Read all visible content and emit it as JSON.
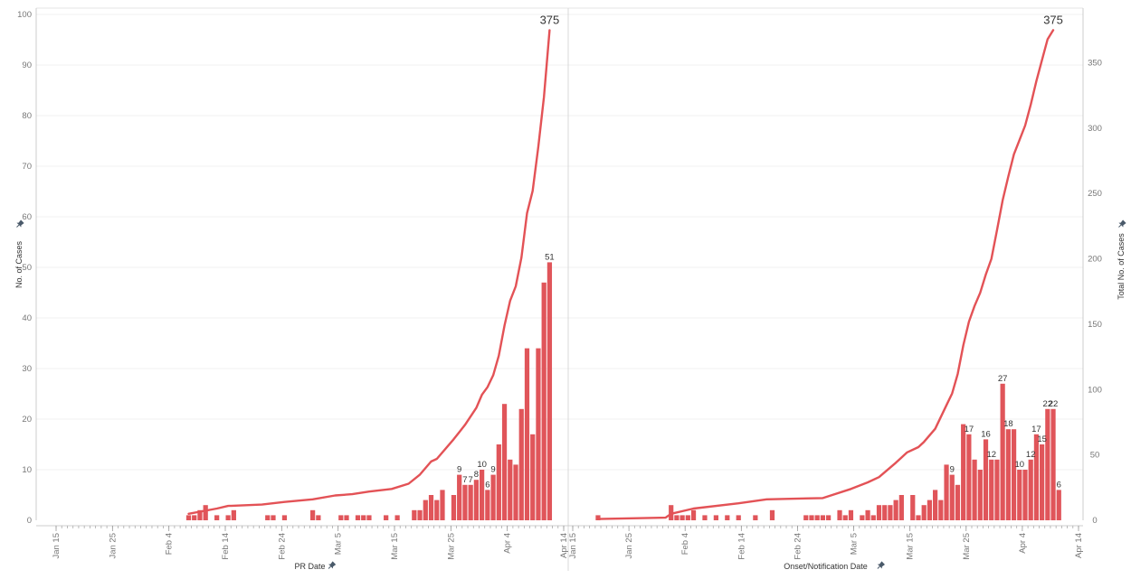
{
  "chart_data": {
    "type": "bar",
    "colors": {
      "bar": "#e0555a",
      "line": "#e35256",
      "grid": "#f0f0f0",
      "axis": "#cccccc",
      "pin": "#4a5a6a"
    },
    "y_left": {
      "label": "No. of Cases",
      "ylim": [
        0,
        100
      ],
      "ticks": [
        "0",
        "10",
        "20",
        "30",
        "40",
        "50",
        "60",
        "70",
        "80",
        "90",
        "100"
      ]
    },
    "y_right": {
      "label": "Total No. of Cases",
      "ylim": [
        0,
        387
      ],
      "ticks": [
        "0",
        "50",
        "100",
        "150",
        "200",
        "250",
        "300",
        "350"
      ]
    },
    "grid": true,
    "panels": [
      {
        "id": "pr",
        "xlabel": "PR Date",
        "x_ticks": [
          "Jan 15",
          "Jan 25",
          "Feb 4",
          "Feb 14",
          "Feb 24",
          "Mar 5",
          "Mar 15",
          "Mar 25",
          "Apr 4",
          "Apr 14"
        ],
        "x_range": [
          "2020-01-15",
          "2020-04-14"
        ],
        "bars": [
          {
            "date": "2020-02-07",
            "value": 1
          },
          {
            "date": "2020-02-08",
            "value": 1
          },
          {
            "date": "2020-02-09",
            "value": 2
          },
          {
            "date": "2020-02-10",
            "value": 3
          },
          {
            "date": "2020-02-12",
            "value": 1
          },
          {
            "date": "2020-02-14",
            "value": 1
          },
          {
            "date": "2020-02-15",
            "value": 2
          },
          {
            "date": "2020-02-21",
            "value": 1
          },
          {
            "date": "2020-02-22",
            "value": 1
          },
          {
            "date": "2020-02-24",
            "value": 1
          },
          {
            "date": "2020-02-29",
            "value": 2
          },
          {
            "date": "2020-03-01",
            "value": 1
          },
          {
            "date": "2020-03-05",
            "value": 1
          },
          {
            "date": "2020-03-06",
            "value": 1
          },
          {
            "date": "2020-03-08",
            "value": 1
          },
          {
            "date": "2020-03-09",
            "value": 1
          },
          {
            "date": "2020-03-10",
            "value": 1
          },
          {
            "date": "2020-03-13",
            "value": 1
          },
          {
            "date": "2020-03-15",
            "value": 1
          },
          {
            "date": "2020-03-18",
            "value": 2
          },
          {
            "date": "2020-03-19",
            "value": 2
          },
          {
            "date": "2020-03-20",
            "value": 4
          },
          {
            "date": "2020-03-21",
            "value": 5
          },
          {
            "date": "2020-03-22",
            "value": 4
          },
          {
            "date": "2020-03-23",
            "value": 6
          },
          {
            "date": "2020-03-25",
            "value": 5
          },
          {
            "date": "2020-03-26",
            "value": 9,
            "label": "9"
          },
          {
            "date": "2020-03-27",
            "value": 7,
            "label": "7"
          },
          {
            "date": "2020-03-28",
            "value": 7,
            "label": "7"
          },
          {
            "date": "2020-03-29",
            "value": 8,
            "label": "8"
          },
          {
            "date": "2020-03-30",
            "value": 10,
            "label": "10"
          },
          {
            "date": "2020-03-31",
            "value": 6,
            "label": "6"
          },
          {
            "date": "2020-04-01",
            "value": 9,
            "label": "9"
          },
          {
            "date": "2020-04-02",
            "value": 15
          },
          {
            "date": "2020-04-03",
            "value": 23
          },
          {
            "date": "2020-04-04",
            "value": 12
          },
          {
            "date": "2020-04-05",
            "value": 11
          },
          {
            "date": "2020-04-06",
            "value": 22
          },
          {
            "date": "2020-04-07",
            "value": 34
          },
          {
            "date": "2020-04-08",
            "value": 17
          },
          {
            "date": "2020-04-09",
            "value": 34
          },
          {
            "date": "2020-04-10",
            "value": 47
          },
          {
            "date": "2020-04-11",
            "value": 51,
            "label": "51"
          }
        ],
        "cumulative": [
          {
            "date": "2020-02-07",
            "value": 5
          },
          {
            "date": "2020-02-12",
            "value": 9
          },
          {
            "date": "2020-02-14",
            "value": 11
          },
          {
            "date": "2020-02-20",
            "value": 12
          },
          {
            "date": "2020-02-24",
            "value": 14
          },
          {
            "date": "2020-02-29",
            "value": 16
          },
          {
            "date": "2020-03-04",
            "value": 19
          },
          {
            "date": "2020-03-07",
            "value": 20
          },
          {
            "date": "2020-03-10",
            "value": 22
          },
          {
            "date": "2020-03-14",
            "value": 24
          },
          {
            "date": "2020-03-17",
            "value": 28
          },
          {
            "date": "2020-03-19",
            "value": 35
          },
          {
            "date": "2020-03-21",
            "value": 45
          },
          {
            "date": "2020-03-22",
            "value": 47
          },
          {
            "date": "2020-03-25",
            "value": 62
          },
          {
            "date": "2020-03-27",
            "value": 73
          },
          {
            "date": "2020-03-29",
            "value": 86
          },
          {
            "date": "2020-03-30",
            "value": 96
          },
          {
            "date": "2020-03-31",
            "value": 102
          },
          {
            "date": "2020-04-01",
            "value": 111
          },
          {
            "date": "2020-04-02",
            "value": 126
          },
          {
            "date": "2020-04-03",
            "value": 149
          },
          {
            "date": "2020-04-04",
            "value": 168
          },
          {
            "date": "2020-04-05",
            "value": 179
          },
          {
            "date": "2020-04-06",
            "value": 201
          },
          {
            "date": "2020-04-07",
            "value": 235
          },
          {
            "date": "2020-04-08",
            "value": 252
          },
          {
            "date": "2020-04-09",
            "value": 286
          },
          {
            "date": "2020-04-10",
            "value": 324
          },
          {
            "date": "2020-04-11",
            "value": 375,
            "label": "375"
          }
        ]
      },
      {
        "id": "onset",
        "xlabel": "Onset/Notification Date",
        "x_ticks": [
          "Jan 15",
          "Jan 25",
          "Feb 4",
          "Feb 14",
          "Feb 24",
          "Mar 5",
          "Mar 15",
          "Mar 25",
          "Apr 4",
          "Apr 14"
        ],
        "x_range": [
          "2020-01-15",
          "2020-04-14"
        ],
        "bars": [
          {
            "date": "2020-01-19",
            "value": 1
          },
          {
            "date": "2020-02-01",
            "value": 3
          },
          {
            "date": "2020-02-02",
            "value": 1
          },
          {
            "date": "2020-02-03",
            "value": 1
          },
          {
            "date": "2020-02-04",
            "value": 1
          },
          {
            "date": "2020-02-05",
            "value": 2
          },
          {
            "date": "2020-02-07",
            "value": 1
          },
          {
            "date": "2020-02-09",
            "value": 1
          },
          {
            "date": "2020-02-11",
            "value": 1
          },
          {
            "date": "2020-02-13",
            "value": 1
          },
          {
            "date": "2020-02-16",
            "value": 1
          },
          {
            "date": "2020-02-19",
            "value": 2
          },
          {
            "date": "2020-02-25",
            "value": 1
          },
          {
            "date": "2020-02-26",
            "value": 1
          },
          {
            "date": "2020-02-27",
            "value": 1
          },
          {
            "date": "2020-02-28",
            "value": 1
          },
          {
            "date": "2020-02-29",
            "value": 1
          },
          {
            "date": "2020-03-02",
            "value": 2
          },
          {
            "date": "2020-03-03",
            "value": 1
          },
          {
            "date": "2020-03-04",
            "value": 2
          },
          {
            "date": "2020-03-06",
            "value": 1
          },
          {
            "date": "2020-03-07",
            "value": 2
          },
          {
            "date": "2020-03-08",
            "value": 1
          },
          {
            "date": "2020-03-09",
            "value": 3
          },
          {
            "date": "2020-03-10",
            "value": 3
          },
          {
            "date": "2020-03-11",
            "value": 3
          },
          {
            "date": "2020-03-12",
            "value": 4
          },
          {
            "date": "2020-03-13",
            "value": 5
          },
          {
            "date": "2020-03-15",
            "value": 5
          },
          {
            "date": "2020-03-16",
            "value": 1
          },
          {
            "date": "2020-03-17",
            "value": 3
          },
          {
            "date": "2020-03-18",
            "value": 4
          },
          {
            "date": "2020-03-19",
            "value": 6
          },
          {
            "date": "2020-03-20",
            "value": 4
          },
          {
            "date": "2020-03-21",
            "value": 11
          },
          {
            "date": "2020-03-22",
            "value": 9,
            "label": "9"
          },
          {
            "date": "2020-03-23",
            "value": 7
          },
          {
            "date": "2020-03-24",
            "value": 19
          },
          {
            "date": "2020-03-25",
            "value": 17,
            "label": "17"
          },
          {
            "date": "2020-03-26",
            "value": 12
          },
          {
            "date": "2020-03-27",
            "value": 10
          },
          {
            "date": "2020-03-28",
            "value": 16,
            "label": "16"
          },
          {
            "date": "2020-03-29",
            "value": 12,
            "label": "12"
          },
          {
            "date": "2020-03-30",
            "value": 12
          },
          {
            "date": "2020-03-31",
            "value": 27,
            "label": "27"
          },
          {
            "date": "2020-04-01",
            "value": 18,
            "label": "18"
          },
          {
            "date": "2020-04-02",
            "value": 18
          },
          {
            "date": "2020-04-03",
            "value": 10,
            "label": "10"
          },
          {
            "date": "2020-04-04",
            "value": 10
          },
          {
            "date": "2020-04-05",
            "value": 12,
            "label": "12"
          },
          {
            "date": "2020-04-06",
            "value": 17,
            "label": "17"
          },
          {
            "date": "2020-04-07",
            "value": 15,
            "label": "15"
          },
          {
            "date": "2020-04-08",
            "value": 22,
            "label": "22"
          },
          {
            "date": "2020-04-09",
            "value": 22,
            "label": "22"
          },
          {
            "date": "2020-04-10",
            "value": 6,
            "label": "6"
          }
        ],
        "cumulative": [
          {
            "date": "2020-01-19",
            "value": 1
          },
          {
            "date": "2020-01-31",
            "value": 2
          },
          {
            "date": "2020-02-01",
            "value": 5
          },
          {
            "date": "2020-02-05",
            "value": 9
          },
          {
            "date": "2020-02-13",
            "value": 13
          },
          {
            "date": "2020-02-18",
            "value": 16
          },
          {
            "date": "2020-02-28",
            "value": 17
          },
          {
            "date": "2020-03-04",
            "value": 24
          },
          {
            "date": "2020-03-07",
            "value": 29
          },
          {
            "date": "2020-03-09",
            "value": 33
          },
          {
            "date": "2020-03-12",
            "value": 44
          },
          {
            "date": "2020-03-14",
            "value": 52
          },
          {
            "date": "2020-03-16",
            "value": 56
          },
          {
            "date": "2020-03-17",
            "value": 60
          },
          {
            "date": "2020-03-19",
            "value": 70
          },
          {
            "date": "2020-03-21",
            "value": 88
          },
          {
            "date": "2020-03-22",
            "value": 97
          },
          {
            "date": "2020-03-23",
            "value": 112
          },
          {
            "date": "2020-03-24",
            "value": 134
          },
          {
            "date": "2020-03-25",
            "value": 152
          },
          {
            "date": "2020-03-26",
            "value": 164
          },
          {
            "date": "2020-03-27",
            "value": 174
          },
          {
            "date": "2020-03-28",
            "value": 188
          },
          {
            "date": "2020-03-29",
            "value": 200
          },
          {
            "date": "2020-03-30",
            "value": 222
          },
          {
            "date": "2020-03-31",
            "value": 245
          },
          {
            "date": "2020-04-01",
            "value": 263
          },
          {
            "date": "2020-04-02",
            "value": 280
          },
          {
            "date": "2020-04-03",
            "value": 291
          },
          {
            "date": "2020-04-04",
            "value": 302
          },
          {
            "date": "2020-04-05",
            "value": 318
          },
          {
            "date": "2020-04-06",
            "value": 336
          },
          {
            "date": "2020-04-07",
            "value": 352
          },
          {
            "date": "2020-04-08",
            "value": 368
          },
          {
            "date": "2020-04-09",
            "value": 375,
            "label": "375"
          }
        ]
      }
    ]
  }
}
